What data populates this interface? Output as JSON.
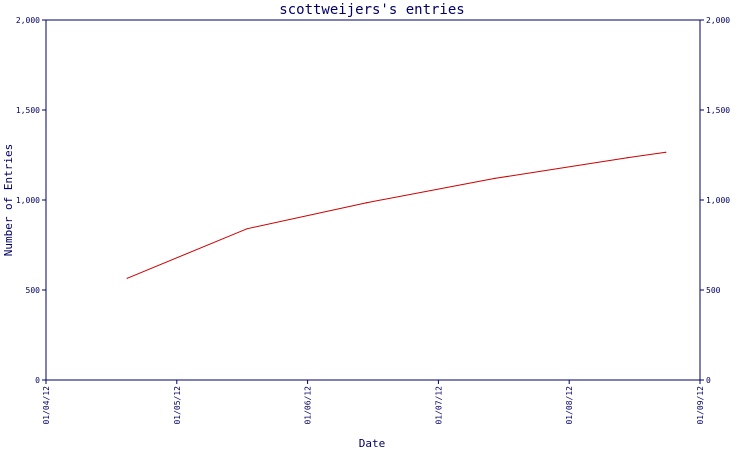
{
  "chart_data": {
    "type": "line",
    "title": "scottweijers's entries",
    "xlabel": "Date",
    "ylabel": "Number of Entries",
    "ylim": [
      0,
      2000
    ],
    "y_ticks": [
      {
        "value": 0,
        "label": "0"
      },
      {
        "value": 500,
        "label": "500"
      },
      {
        "value": 1000,
        "label": "1,000"
      },
      {
        "value": 1500,
        "label": "1,500"
      },
      {
        "value": 2000,
        "label": "2,000"
      }
    ],
    "x_ticks": [
      "01/04/12",
      "01/05/12",
      "01/06/12",
      "01/07/12",
      "01/08/12",
      "01/09/12"
    ],
    "xlim": [
      "2012-04-01",
      "2012-09-01"
    ],
    "grid": false,
    "series": [
      {
        "color": "#cc0000",
        "x": [
          "2012-04-20",
          "2012-05-18",
          "2012-06-15",
          "2012-07-15",
          "2012-08-15",
          "2012-08-24"
        ],
        "values": [
          565,
          840,
          985,
          1120,
          1235,
          1265
        ]
      }
    ]
  }
}
